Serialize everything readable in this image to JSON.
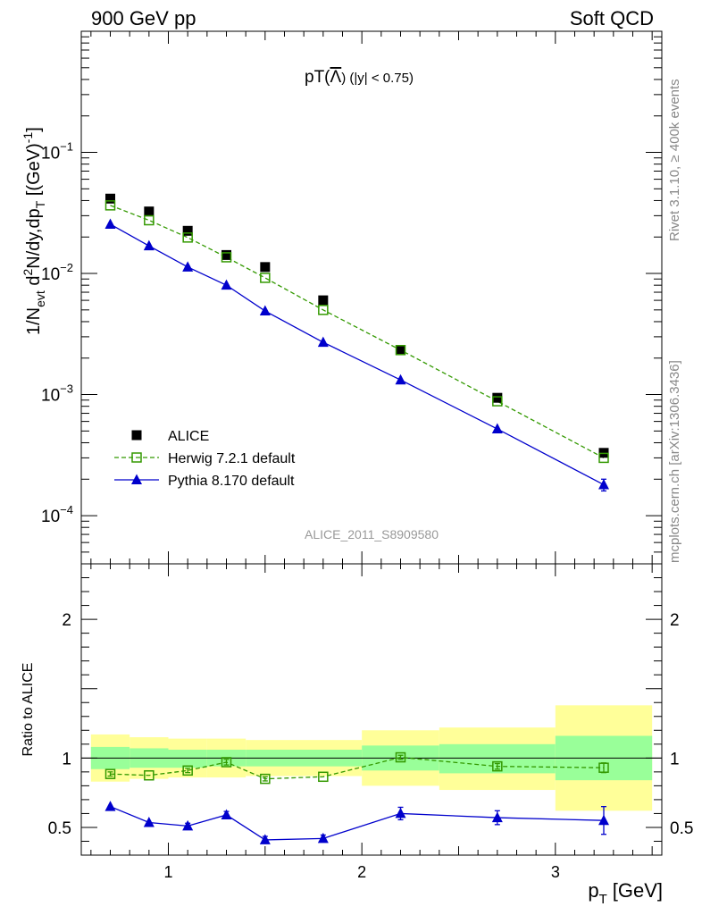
{
  "header": {
    "left": "900 GeV pp",
    "right": "Soft QCD"
  },
  "side": {
    "rivet": "Rivet 3.1.10, ≥ 400k events",
    "mcplots": "mcplots.cern.ch [arXiv:1306.3436]"
  },
  "chart_data": {
    "type": "scatter",
    "title": "pT(Λ̅) (|y| < 0.75)",
    "title_parts": {
      "main": "pT(",
      "particle": "Λ",
      "rest": ") (|y| < 0.75)"
    },
    "watermark": "ALICE_2011_S8909580",
    "xlabel": "p_T [GeV]",
    "xlabel_parts": {
      "p": "p",
      "sub": "T",
      "unit": "[GeV]"
    },
    "ylabel_top": "1/N_evt d²N/dy,dp_T [(GeV)⁻¹]",
    "ylabel_bottom": "Ratio to ALICE",
    "xlim": [
      0.55,
      3.55
    ],
    "ylim_top": [
      4e-05,
      1.0
    ],
    "yscale_top": "log",
    "ylim_bottom": [
      0.3,
      2.4
    ],
    "x_ticks": [
      1,
      2,
      3
    ],
    "x_tick_labels": [
      "1",
      "2",
      "3"
    ],
    "y_ticks_top": [
      0.1,
      0.01,
      0.001,
      0.0001
    ],
    "y_tick_labels_top": [
      {
        "base": "10",
        "exp": "−1"
      },
      {
        "base": "10",
        "exp": "−2"
      },
      {
        "base": "10",
        "exp": "−3"
      },
      {
        "base": "10",
        "exp": "−4"
      }
    ],
    "y_ticks_bottom": [
      2,
      1,
      0.5
    ],
    "y_tick_labels_bottom": [
      "2",
      "1",
      "0.5"
    ],
    "legend_position": "lower-left",
    "bins": [
      [
        0.6,
        0.8
      ],
      [
        0.8,
        1.0
      ],
      [
        1.0,
        1.2
      ],
      [
        1.2,
        1.4
      ],
      [
        1.4,
        1.6
      ],
      [
        1.6,
        2.0
      ],
      [
        2.0,
        2.4
      ],
      [
        2.4,
        3.0
      ],
      [
        3.0,
        3.5
      ]
    ],
    "band_colors": {
      "inner": "#99ff99",
      "outer": "#ffff99"
    },
    "bands": {
      "inner": [
        [
          0.92,
          1.08
        ],
        [
          0.93,
          1.07
        ],
        [
          0.93,
          1.06
        ],
        [
          0.94,
          1.06
        ],
        [
          0.94,
          1.06
        ],
        [
          0.94,
          1.06
        ],
        [
          0.91,
          1.09
        ],
        [
          0.89,
          1.1
        ],
        [
          0.84,
          1.16
        ]
      ],
      "outer": [
        [
          0.83,
          1.17
        ],
        [
          0.85,
          1.15
        ],
        [
          0.86,
          1.14
        ],
        [
          0.86,
          1.14
        ],
        [
          0.87,
          1.13
        ],
        [
          0.87,
          1.13
        ],
        [
          0.8,
          1.2
        ],
        [
          0.77,
          1.22
        ],
        [
          0.62,
          1.38
        ]
      ]
    },
    "series": [
      {
        "name": "ALICE",
        "color": "#000000",
        "marker": "filled-square",
        "x": [
          0.7,
          0.9,
          1.1,
          1.3,
          1.5,
          1.8,
          2.2,
          2.7,
          3.25
        ],
        "y": [
          0.0415,
          0.0325,
          0.0225,
          0.0142,
          0.0113,
          0.006,
          0.00232,
          0.00094,
          0.00033
        ]
      },
      {
        "name": "Herwig 7.2.1 default",
        "color": "#339900",
        "marker": "open-square",
        "line": "dashed",
        "x": [
          0.7,
          0.9,
          1.1,
          1.3,
          1.5,
          1.8,
          2.2,
          2.7,
          3.25
        ],
        "y": [
          0.0365,
          0.0275,
          0.0198,
          0.0136,
          0.0092,
          0.005,
          0.00233,
          0.00088,
          0.0003
        ],
        "ratio": [
          0.885,
          0.875,
          0.91,
          0.97,
          0.85,
          0.865,
          1.005,
          0.94,
          0.93
        ],
        "ratio_err": [
          0.015,
          0.012,
          0.015,
          0.02,
          0.015,
          0.012,
          0.015,
          0.02,
          0.035
        ]
      },
      {
        "name": "Pythia 8.170 default",
        "color": "#0000cc",
        "marker": "filled-triangle",
        "line": "solid",
        "x": [
          0.7,
          0.9,
          1.1,
          1.3,
          1.5,
          1.8,
          2.2,
          2.7,
          3.25
        ],
        "y": [
          0.0255,
          0.0169,
          0.0113,
          0.008,
          0.0049,
          0.0027,
          0.00132,
          0.00052,
          0.00018
        ],
        "y_err": [
          0,
          0,
          0,
          0,
          0,
          0,
          0,
          0,
          2e-05
        ],
        "ratio": [
          0.65,
          0.535,
          0.51,
          0.59,
          0.41,
          0.42,
          0.6,
          0.57,
          0.55
        ],
        "ratio_err": [
          0.01,
          0.01,
          0.02,
          0.025,
          0.025,
          0.025,
          0.045,
          0.05,
          0.1
        ]
      }
    ]
  }
}
